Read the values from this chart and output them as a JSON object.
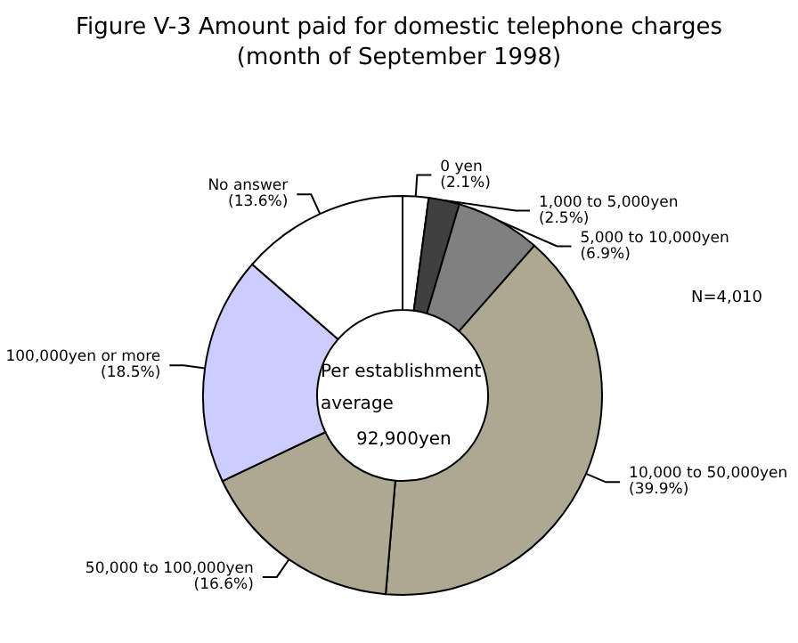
{
  "chart_data": {
    "type": "donut",
    "title": "Figure V-3 Amount paid for domestic telephone charges",
    "subtitle": "(month of September 1998)",
    "categories": [
      "0 yen",
      "1,000 to 5,000yen",
      "5,000 to 10,000yen",
      "10,000 to 50,000yen",
      "50,000 to 100,000yen",
      "100,000yen or more",
      "No answer"
    ],
    "values": [
      2.1,
      2.5,
      6.9,
      39.9,
      16.6,
      18.5,
      13.6
    ],
    "value_labels": [
      "(2.1%)",
      "(2.5%)",
      "(6.9%)",
      "(39.9%)",
      "(16.6%)",
      "(18.5%)",
      "(13.6%)"
    ],
    "colors": [
      "#ffffff",
      "#404040",
      "#808080",
      "#aca891",
      "#aca891",
      "#ccccff",
      "#ffffff"
    ],
    "annotations": [
      "Per establishment average",
      "92,900yen",
      "N=4,010"
    ],
    "legend": false
  }
}
